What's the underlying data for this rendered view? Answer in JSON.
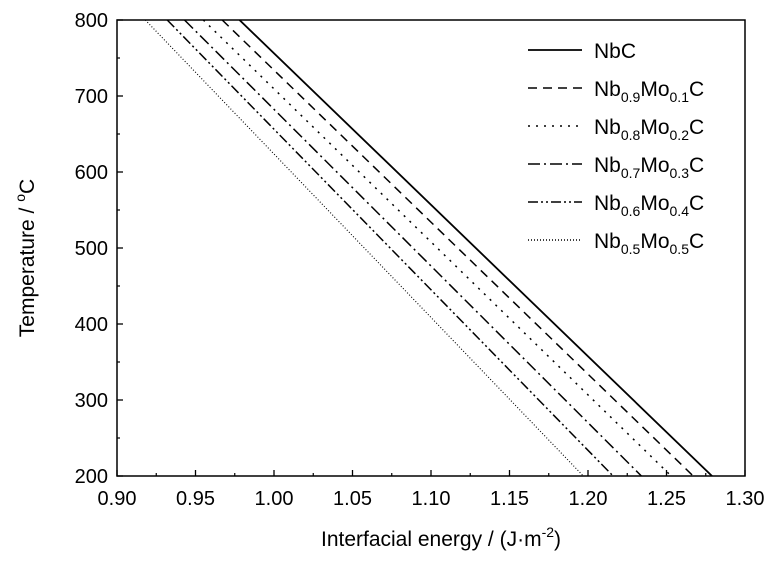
{
  "chart_data": {
    "type": "line",
    "xlabel": {
      "prefix": "Interfacial energy / (J·m",
      "sup": "-2",
      "suffix": ")"
    },
    "ylabel": {
      "prefix": "Temperature / ",
      "sup": "o",
      "suffix": "C"
    },
    "xlim": [
      0.9,
      1.3
    ],
    "ylim": [
      200,
      800
    ],
    "xticks": [
      "0.90",
      "0.95",
      "1.00",
      "1.05",
      "1.10",
      "1.15",
      "1.20",
      "1.25",
      "1.30"
    ],
    "yticks": [
      "200",
      "300",
      "400",
      "500",
      "600",
      "700",
      "800"
    ],
    "grid": false,
    "legend_position": "top-right",
    "series": [
      {
        "name": "NbC",
        "legend": [
          {
            "t": "NbC"
          }
        ],
        "dash": "",
        "x": [
          0.978,
          1.279
        ],
        "y": [
          800,
          200
        ]
      },
      {
        "name": "Nb0.9Mo0.1C",
        "legend": [
          {
            "t": "Nb"
          },
          {
            "t": "0.9",
            "sub": true
          },
          {
            "t": "Mo"
          },
          {
            "t": "0.1",
            "sub": true
          },
          {
            "t": "C"
          }
        ],
        "dash": "9,6",
        "x": [
          0.967,
          1.267
        ],
        "y": [
          800,
          200
        ]
      },
      {
        "name": "Nb0.8Mo0.2C",
        "legend": [
          {
            "t": "Nb"
          },
          {
            "t": "0.8",
            "sub": true
          },
          {
            "t": "Mo"
          },
          {
            "t": "0.2",
            "sub": true
          },
          {
            "t": "C"
          }
        ],
        "dash": "2,6",
        "x": [
          0.955,
          1.253
        ],
        "y": [
          800,
          200
        ]
      },
      {
        "name": "Nb0.7Mo0.3C",
        "legend": [
          {
            "t": "Nb"
          },
          {
            "t": "0.7",
            "sub": true
          },
          {
            "t": "Mo"
          },
          {
            "t": "0.3",
            "sub": true
          },
          {
            "t": "C"
          }
        ],
        "dash": "12,4,2,4",
        "x": [
          0.943,
          1.234
        ],
        "y": [
          800,
          200
        ]
      },
      {
        "name": "Nb0.6Mo0.4C",
        "legend": [
          {
            "t": "Nb"
          },
          {
            "t": "0.6",
            "sub": true
          },
          {
            "t": "Mo"
          },
          {
            "t": "0.4",
            "sub": true
          },
          {
            "t": "C"
          }
        ],
        "dash": "10,3,2,3,2,3",
        "x": [
          0.932,
          1.216
        ],
        "y": [
          800,
          200
        ]
      },
      {
        "name": "Nb0.5Mo0.5C",
        "legend": [
          {
            "t": "Nb"
          },
          {
            "t": "0.5",
            "sub": true
          },
          {
            "t": "Mo"
          },
          {
            "t": "0.5",
            "sub": true
          },
          {
            "t": "C"
          }
        ],
        "dash": "1,2",
        "x": [
          0.918,
          1.197
        ],
        "y": [
          800,
          200
        ]
      }
    ]
  }
}
